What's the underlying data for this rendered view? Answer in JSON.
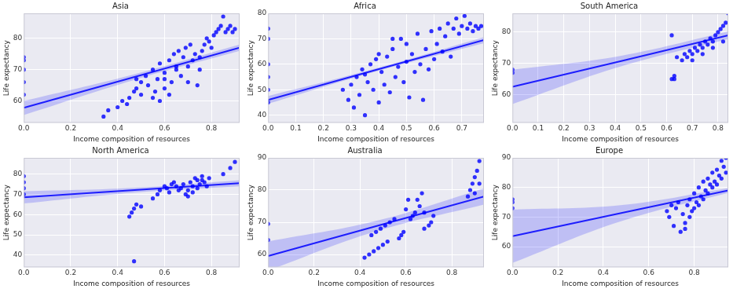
{
  "chart_data": [
    {
      "type": "scatter",
      "title": "Asia",
      "x_label": "Income composition of resources",
      "y_label": "Life expectancy",
      "color": "#0000ff",
      "marker": "circle",
      "grid": true,
      "xlim": [
        0,
        0.92
      ],
      "xticks": [
        {
          "value": 0,
          "label": "0.0"
        },
        0.2,
        0.4,
        0.6,
        0.8
      ],
      "ylim": [
        53,
        88
      ],
      "yticks": [
        60,
        70,
        80
      ],
      "x": [
        0,
        0,
        0,
        0,
        0,
        0.34,
        0.36,
        0.4,
        0.42,
        0.44,
        0.45,
        0.47,
        0.48,
        0.5,
        0.5,
        0.52,
        0.53,
        0.55,
        0.56,
        0.57,
        0.58,
        0.6,
        0.6,
        0.62,
        0.63,
        0.64,
        0.65,
        0.66,
        0.67,
        0.68,
        0.69,
        0.7,
        0.71,
        0.72,
        0.73,
        0.74,
        0.75,
        0.76,
        0.77,
        0.78,
        0.79,
        0.8,
        0.81,
        0.82,
        0.83,
        0.84,
        0.85,
        0.86,
        0.87,
        0.88,
        0.89,
        0.9,
        0.55,
        0.6,
        0.65,
        0.7,
        0.75,
        0.62,
        0.48,
        0.58
      ],
      "values": [
        62,
        66,
        70,
        73,
        74,
        55,
        57,
        58,
        60,
        59,
        61,
        63,
        64,
        66,
        62,
        68,
        65,
        70,
        63,
        67,
        72,
        64,
        69,
        73,
        66,
        75,
        70,
        76,
        68,
        74,
        77,
        71,
        78,
        73,
        75,
        65,
        74,
        76,
        78,
        80,
        79,
        77,
        81,
        82,
        83,
        84,
        87,
        82,
        83,
        84,
        82,
        83,
        61,
        67,
        71,
        66,
        70,
        62,
        67,
        60
      ],
      "regression": {
        "x": [
          0,
          0.46,
          0.92
        ],
        "values": [
          57.8,
          67.4,
          77.0
        ],
        "lower": [
          55.5,
          66.5,
          76.0
        ],
        "upper": [
          60.0,
          68.3,
          78.0
        ]
      }
    },
    {
      "type": "scatter",
      "title": "Africa",
      "x_label": "Income composition of resources",
      "y_label": "Life expectancy",
      "color": "#0000ff",
      "marker": "circle",
      "grid": true,
      "xlim": [
        0,
        0.78
      ],
      "xticks": [
        {
          "value": 0,
          "label": "0.0"
        },
        0.1,
        0.2,
        0.3,
        0.4,
        0.5,
        0.6,
        0.7
      ],
      "ylim": [
        37,
        80
      ],
      "yticks": [
        40,
        50,
        60,
        70,
        80
      ],
      "x": [
        0,
        0,
        0,
        0,
        0,
        0,
        0.27,
        0.29,
        0.3,
        0.31,
        0.32,
        0.33,
        0.34,
        0.35,
        0.36,
        0.37,
        0.38,
        0.39,
        0.4,
        0.41,
        0.42,
        0.43,
        0.44,
        0.45,
        0.46,
        0.47,
        0.48,
        0.49,
        0.5,
        0.51,
        0.52,
        0.53,
        0.54,
        0.55,
        0.56,
        0.57,
        0.58,
        0.59,
        0.6,
        0.61,
        0.62,
        0.63,
        0.64,
        0.65,
        0.66,
        0.67,
        0.68,
        0.69,
        0.7,
        0.71,
        0.72,
        0.73,
        0.74,
        0.75,
        0.76,
        0.77,
        0.4,
        0.45,
        0.5,
        0.35
      ],
      "values": [
        45,
        50,
        55,
        60,
        70,
        74,
        50,
        46,
        52,
        43,
        55,
        48,
        58,
        40,
        53,
        60,
        50,
        62,
        45,
        57,
        52,
        63,
        49,
        66,
        55,
        59,
        70,
        53,
        61,
        47,
        64,
        57,
        72,
        60,
        46,
        66,
        58,
        73,
        62,
        68,
        74,
        65,
        71,
        76,
        63,
        74,
        78,
        72,
        75,
        79,
        74,
        76,
        73,
        75,
        74,
        75,
        64,
        70,
        68,
        56
      ],
      "regression": {
        "x": [
          0,
          0.39,
          0.78
        ],
        "values": [
          46,
          57.8,
          69.5
        ],
        "lower": [
          44.5,
          57.2,
          68.3
        ],
        "upper": [
          47.5,
          58.4,
          70.7
        ]
      }
    },
    {
      "type": "scatter",
      "title": "South America",
      "x_label": "Income composition of resources",
      "y_label": "Life expectancy",
      "color": "#0000ff",
      "marker": "circle",
      "grid": true,
      "xlim": [
        0,
        0.84
      ],
      "xticks": [
        {
          "value": 0,
          "label": "0.0"
        },
        0.1,
        0.2,
        0.3,
        0.4,
        0.5,
        0.6,
        0.7,
        0.8
      ],
      "ylim": [
        51,
        86
      ],
      "yticks": [
        60,
        70,
        80
      ],
      "x": [
        0,
        0,
        0.62,
        0.63,
        0.63,
        0.62,
        0.64,
        0.66,
        0.67,
        0.68,
        0.69,
        0.7,
        0.71,
        0.72,
        0.73,
        0.74,
        0.75,
        0.76,
        0.77,
        0.78,
        0.79,
        0.8,
        0.81,
        0.82,
        0.83,
        0.84,
        0.7,
        0.74,
        0.78,
        0.82
      ],
      "values": [
        67,
        68,
        65,
        66,
        65,
        79,
        72,
        71,
        73,
        72,
        74,
        73,
        75,
        74,
        76,
        75,
        77,
        76,
        78,
        77,
        79,
        80,
        81,
        82,
        83,
        86,
        71,
        73,
        75,
        77
      ],
      "regression": {
        "x": [
          0,
          0.42,
          0.84
        ],
        "values": [
          62.5,
          70.7,
          79
        ],
        "lower": [
          57,
          69,
          77.8
        ],
        "upper": [
          68,
          72.4,
          80.2
        ]
      }
    },
    {
      "type": "scatter",
      "title": "North America",
      "x_label": "Income composition of resources",
      "y_label": "Life expectancy",
      "color": "#0000ff",
      "marker": "circle",
      "grid": true,
      "xlim": [
        0,
        0.92
      ],
      "xticks": [
        {
          "value": 0,
          "label": "0.0"
        },
        0.2,
        0.4,
        0.6,
        0.8
      ],
      "ylim": [
        34,
        88
      ],
      "yticks": [
        40,
        50,
        60,
        70,
        80
      ],
      "x": [
        0,
        0,
        0,
        0,
        0.45,
        0.46,
        0.47,
        0.48,
        0.5,
        0.47,
        0.55,
        0.57,
        0.58,
        0.6,
        0.61,
        0.62,
        0.63,
        0.64,
        0.65,
        0.66,
        0.67,
        0.68,
        0.69,
        0.7,
        0.71,
        0.72,
        0.73,
        0.74,
        0.75,
        0.76,
        0.77,
        0.78,
        0.79,
        0.7,
        0.72,
        0.74,
        0.76,
        0.85,
        0.88,
        0.9
      ],
      "values": [
        70,
        73,
        76,
        79,
        59,
        61,
        63,
        65,
        64,
        37,
        68,
        70,
        72,
        74,
        73,
        71,
        75,
        76,
        74,
        72,
        73,
        75,
        70,
        72,
        76,
        74,
        78,
        77,
        75,
        79,
        76,
        74,
        78,
        69,
        71,
        73,
        77,
        80,
        83,
        86
      ],
      "regression": {
        "x": [
          0,
          0.46,
          0.92
        ],
        "values": [
          68.5,
          72,
          75.5
        ],
        "lower": [
          65.5,
          70.8,
          74
        ],
        "upper": [
          71.5,
          73.2,
          77
        ]
      }
    },
    {
      "type": "scatter",
      "title": "Australia",
      "x_label": "Income composition of resources",
      "y_label": "Life expectancy",
      "color": "#0000ff",
      "marker": "circle",
      "grid": true,
      "xlim": [
        0,
        0.94
      ],
      "xticks": [
        {
          "value": 0,
          "label": "0.0"
        },
        0.2,
        0.4,
        0.6,
        0.8
      ],
      "ylim": [
        56,
        90
      ],
      "yticks": [
        60,
        70,
        80,
        90
      ],
      "x": [
        0,
        0,
        0.42,
        0.44,
        0.46,
        0.48,
        0.5,
        0.52,
        0.45,
        0.47,
        0.49,
        0.51,
        0.53,
        0.55,
        0.57,
        0.58,
        0.59,
        0.6,
        0.61,
        0.62,
        0.63,
        0.64,
        0.66,
        0.67,
        0.68,
        0.7,
        0.71,
        0.72,
        0.65,
        0.68,
        0.87,
        0.88,
        0.89,
        0.9,
        0.91,
        0.92,
        0.92,
        0.9
      ],
      "values": [
        64.5,
        69.5,
        59,
        60,
        61,
        62,
        63,
        64,
        66,
        67,
        68,
        69,
        70,
        71,
        65,
        66,
        67,
        74,
        77,
        71,
        72,
        73,
        75,
        79,
        68,
        69,
        70,
        72,
        77,
        73,
        78,
        80,
        82,
        84,
        86,
        89,
        82,
        79
      ],
      "regression": {
        "x": [
          0,
          0.47,
          0.94
        ],
        "values": [
          59.5,
          68.8,
          78
        ],
        "lower": [
          55,
          67.2,
          75.5
        ],
        "upper": [
          64,
          70.4,
          80.5
        ]
      }
    },
    {
      "type": "scatter",
      "title": "Europe",
      "x_label": "Income composition of resources",
      "y_label": "Life expectancy",
      "color": "#0000ff",
      "marker": "circle",
      "grid": true,
      "xlim": [
        0,
        0.95
      ],
      "xticks": [
        {
          "value": 0,
          "label": "0.0"
        },
        0.2,
        0.4,
        0.6,
        0.8
      ],
      "ylim": [
        53,
        90
      ],
      "yticks": [
        60,
        70,
        80,
        90
      ],
      "x": [
        0,
        0,
        0,
        0.68,
        0.69,
        0.7,
        0.71,
        0.72,
        0.73,
        0.74,
        0.75,
        0.76,
        0.77,
        0.78,
        0.79,
        0.8,
        0.81,
        0.82,
        0.83,
        0.84,
        0.85,
        0.86,
        0.87,
        0.88,
        0.89,
        0.9,
        0.91,
        0.92,
        0.93,
        0.94,
        0.76,
        0.78,
        0.8,
        0.82,
        0.84,
        0.86,
        0.88,
        0.9,
        0.92,
        0.94
      ],
      "values": [
        73,
        75,
        76,
        72,
        70,
        74,
        67,
        73,
        75,
        65,
        71,
        68,
        74,
        76,
        72,
        78,
        75,
        80,
        77,
        82,
        79,
        83,
        81,
        85,
        82,
        86,
        84,
        89,
        87,
        90,
        66,
        70,
        73,
        74,
        76,
        78,
        80,
        81,
        83,
        85
      ],
      "regression": {
        "x": [
          0,
          0.475,
          0.95
        ],
        "values": [
          63.5,
          71.3,
          79
        ],
        "lower": [
          54.5,
          68.5,
          78.2
        ],
        "upper": [
          72.5,
          74,
          79.8
        ]
      }
    }
  ]
}
